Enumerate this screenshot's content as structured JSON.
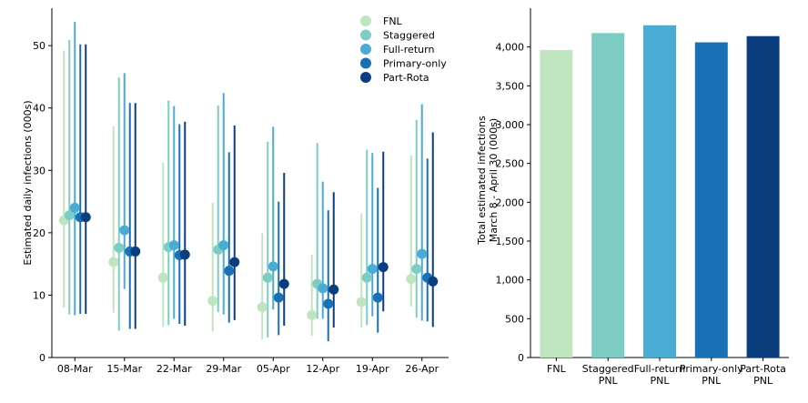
{
  "chart_data": [
    {
      "type": "scatter",
      "subtype": "point-with-intervals",
      "title": "",
      "xlabel": "",
      "ylabel": "Estimated daily infections (000s)",
      "ylim": [
        0,
        56
      ],
      "yticks": [
        0,
        10,
        20,
        30,
        40,
        50
      ],
      "categories": [
        "08-Mar",
        "15-Mar",
        "22-Mar",
        "29-Mar",
        "05-Apr",
        "12-Apr",
        "19-Apr",
        "26-Apr"
      ],
      "legend_position": "top-right",
      "series": [
        {
          "name": "FNL",
          "color": "#bfe5bf",
          "values": [
            22,
            15.3,
            12.8,
            9.1,
            8.1,
            6.8,
            8.9,
            12.6
          ],
          "lower": [
            8.0,
            7.2,
            4.9,
            4.2,
            2.9,
            3.5,
            4.8,
            8.2
          ],
          "upper": [
            49.2,
            37.1,
            31.2,
            24.8,
            19.9,
            16.5,
            23.1,
            32.4
          ]
        },
        {
          "name": "Staggered",
          "color": "#7dcdc4",
          "values": [
            22.8,
            17.6,
            17.7,
            17.3,
            12.8,
            11.8,
            12.8,
            14.2
          ],
          "lower": [
            6.9,
            4.3,
            5.2,
            7.3,
            3.2,
            6.2,
            5.2,
            6.4
          ],
          "upper": [
            50.9,
            44.9,
            41.2,
            40.4,
            34.6,
            34.4,
            33.3,
            38.1
          ]
        },
        {
          "name": "Full-return",
          "color": "#4bacd3",
          "values": [
            24.0,
            20.4,
            18.0,
            18.0,
            14.6,
            11.1,
            14.2,
            16.6
          ],
          "lower": [
            6.8,
            11.0,
            6.2,
            6.9,
            7.7,
            6.2,
            6.6,
            5.9
          ],
          "upper": [
            53.8,
            45.6,
            40.3,
            42.4,
            37.0,
            28.2,
            32.8,
            40.6
          ]
        },
        {
          "name": "Primary-only",
          "color": "#1a70b5",
          "values": [
            22.5,
            17.0,
            16.4,
            13.9,
            9.6,
            8.6,
            9.6,
            12.8
          ],
          "lower": [
            7.0,
            4.6,
            5.4,
            5.6,
            3.6,
            2.6,
            4.0,
            5.8
          ],
          "upper": [
            50.2,
            40.8,
            37.4,
            32.9,
            25.0,
            23.6,
            27.2,
            31.9
          ]
        },
        {
          "name": "Part-Rota",
          "color": "#0b3e7f",
          "values": [
            22.5,
            17.0,
            16.5,
            15.3,
            11.8,
            10.9,
            14.5,
            12.2
          ],
          "lower": [
            7.0,
            4.6,
            5.1,
            6.0,
            5.1,
            4.8,
            7.4,
            4.9
          ],
          "upper": [
            50.2,
            40.8,
            37.8,
            37.2,
            29.6,
            26.5,
            33.0,
            36.1
          ]
        }
      ]
    },
    {
      "type": "bar",
      "title": "",
      "xlabel": "",
      "ylabel_lines": [
        "Total estimated infections",
        "March 8 - April 30 (000s)"
      ],
      "ylim": [
        0,
        4500
      ],
      "yticks": [
        "0",
        "500",
        "1,000",
        "1,500",
        "2,000",
        "2,500",
        "3,000",
        "3,500",
        "4,000"
      ],
      "ytick_values": [
        0,
        500,
        1000,
        1500,
        2000,
        2500,
        3000,
        3500,
        4000
      ],
      "categories": [
        {
          "line1": "FNL",
          "line2": ""
        },
        {
          "line1": "Staggered",
          "line2": "PNL"
        },
        {
          "line1": "Full-return",
          "line2": "PNL"
        },
        {
          "line1": "Primary-only",
          "line2": "PNL"
        },
        {
          "line1": "Part-Rota",
          "line2": "PNL"
        }
      ],
      "values": [
        3960,
        4180,
        4280,
        4060,
        4140
      ],
      "colors": [
        "#bfe5bf",
        "#7dcdc4",
        "#4bacd3",
        "#1a70b5",
        "#0b3e7f"
      ]
    }
  ]
}
